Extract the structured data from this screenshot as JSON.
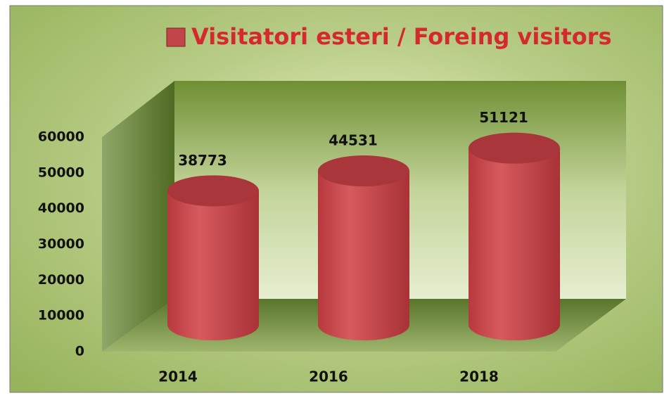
{
  "chart_data": {
    "type": "bar",
    "categories": [
      "2014",
      "2016",
      "2018"
    ],
    "series": [
      {
        "name": "Visitatori esteri / Foreing visitors",
        "color": "#c0464a",
        "values": [
          38773,
          44531,
          51121
        ]
      }
    ],
    "ylim": [
      0,
      60000
    ],
    "yticks": [
      0,
      10000,
      20000,
      30000,
      40000,
      50000,
      60000
    ],
    "legend": "top"
  }
}
